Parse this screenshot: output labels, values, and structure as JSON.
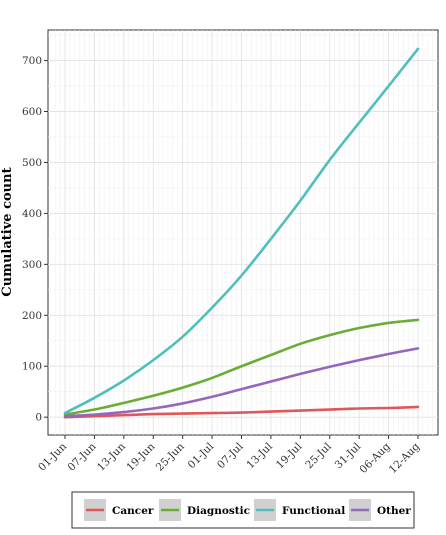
{
  "chart_data": {
    "type": "line",
    "ylabel": "Cumulative count",
    "xlabel": "",
    "ylim": [
      -35,
      760
    ],
    "y_ticks": [
      0,
      100,
      200,
      300,
      400,
      500,
      600,
      700
    ],
    "x_ticks": [
      "01-Jun",
      "07-Jun",
      "13-Jun",
      "19-Jun",
      "25-Jun",
      "01-Jul",
      "07-Jul",
      "13-Jul",
      "19-Jul",
      "25-Jul",
      "31-Jul",
      "06-Aug",
      "12-Aug"
    ],
    "x_tick_days": [
      0,
      6,
      12,
      18,
      24,
      30,
      36,
      42,
      48,
      54,
      60,
      66,
      72
    ],
    "x": [
      0,
      6,
      12,
      18,
      24,
      30,
      36,
      42,
      48,
      54,
      60,
      66,
      72
    ],
    "grid": true,
    "legend_position": "bottom",
    "series": [
      {
        "name": "Cancer",
        "color": "#e15759",
        "values": [
          0,
          2,
          4,
          6,
          7,
          8,
          9,
          11,
          13,
          15,
          17,
          18,
          20
        ]
      },
      {
        "name": "Diagnostic",
        "color": "#6aad35",
        "values": [
          5,
          15,
          28,
          42,
          58,
          77,
          100,
          122,
          144,
          161,
          175,
          185,
          191
        ]
      },
      {
        "name": "Functional",
        "color": "#4fbfbd",
        "values": [
          8,
          38,
          72,
          112,
          158,
          215,
          278,
          350,
          425,
          505,
          578,
          650,
          723
        ]
      },
      {
        "name": "Other",
        "color": "#9467bd",
        "values": [
          2,
          5,
          10,
          17,
          27,
          40,
          55,
          70,
          85,
          99,
          112,
          124,
          135
        ]
      }
    ]
  }
}
